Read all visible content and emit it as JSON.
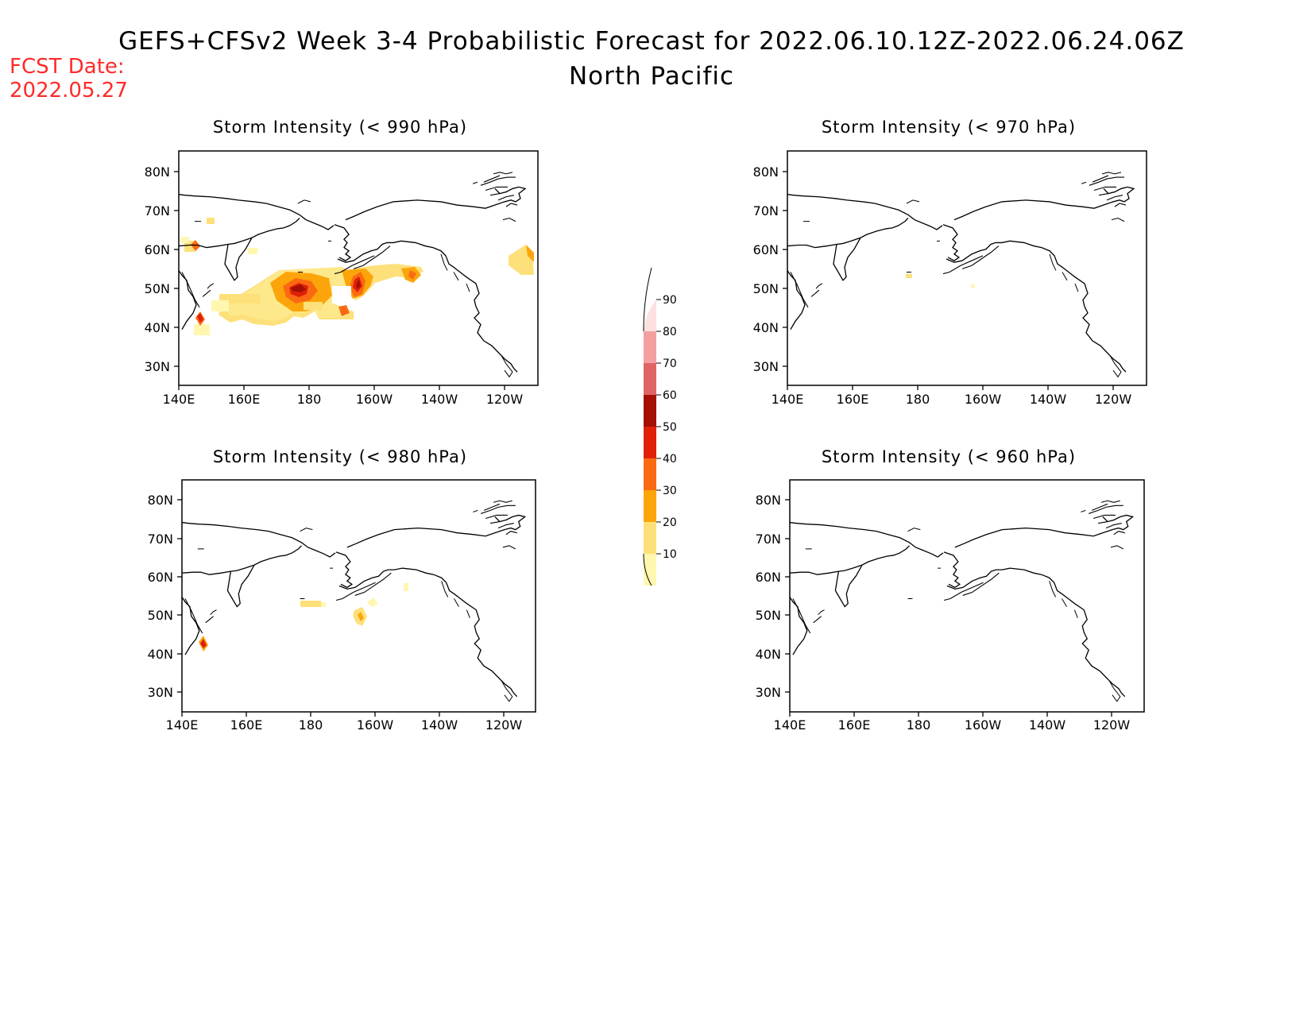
{
  "header": {
    "title": "GEFS+CFSv2 Week 3-4 Probabilistic Forecast for 2022.06.10.12Z-2022.06.24.06Z",
    "subtitle": "North Pacific",
    "fcst_label": "FCST Date:",
    "fcst_date": "2022.05.27",
    "fcst_color": "#ff2a2a"
  },
  "axes": {
    "lat_labels": [
      "80N",
      "70N",
      "60N",
      "50N",
      "40N",
      "30N"
    ],
    "lon_labels": [
      "140E",
      "160E",
      "180",
      "160W",
      "140W",
      "120W"
    ]
  },
  "panels": [
    {
      "id": "990",
      "title": "Storm Intensity (< 990 hPa)"
    },
    {
      "id": "970",
      "title": "Storm Intensity (< 970 hPa)"
    },
    {
      "id": "980",
      "title": "Storm Intensity (< 980 hPa)"
    },
    {
      "id": "960",
      "title": "Storm Intensity (< 960 hPa)"
    }
  ],
  "colorbar": {
    "levels": [
      "90",
      "80",
      "70",
      "60",
      "50",
      "40",
      "30",
      "20",
      "10"
    ],
    "colors": {
      "10-20": "#fff7b0",
      "20-30": "#fee07a",
      "30-40": "#fca50a",
      "40-50": "#fb6a12",
      "50-60": "#e02008",
      "60-70": "#a50f05",
      "70-80": "#e06464",
      "80-90": "#f4a0a0",
      "90+": "#fde0e0"
    }
  }
}
